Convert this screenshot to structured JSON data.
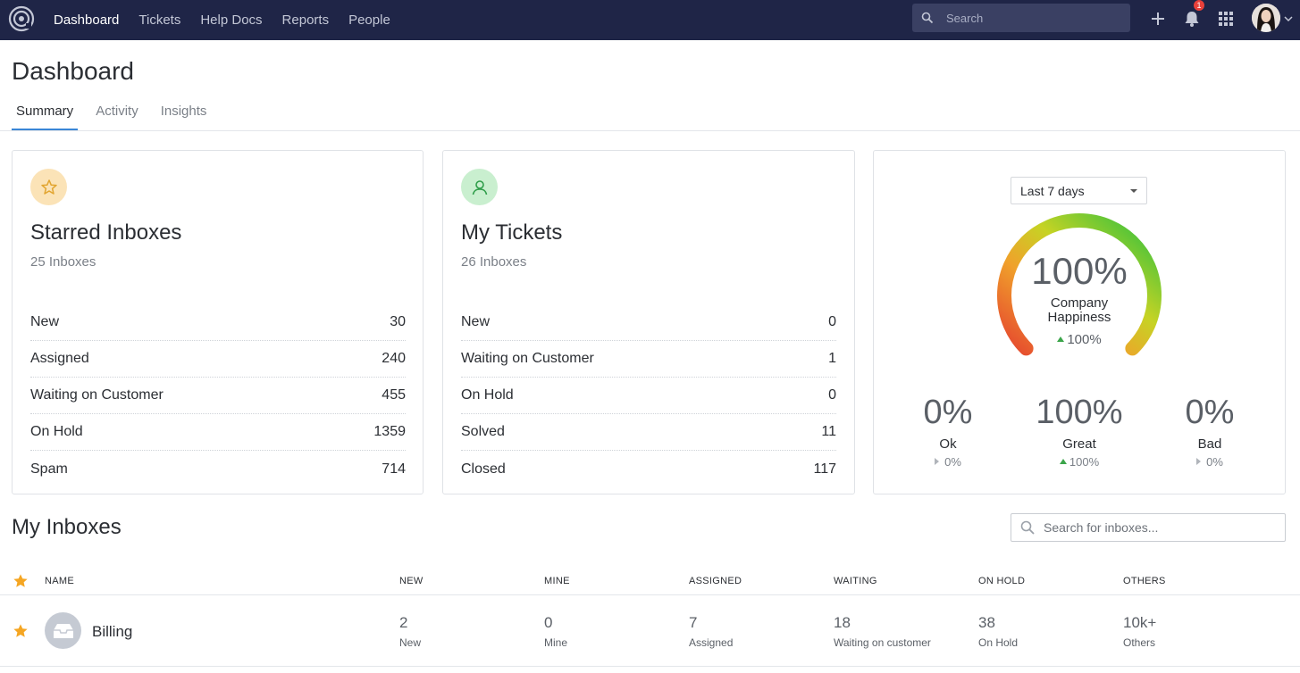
{
  "nav": {
    "links": [
      "Dashboard",
      "Tickets",
      "Help Docs",
      "Reports",
      "People"
    ],
    "search_placeholder": "Search",
    "notification_count": "1",
    "icons": [
      "logo-icon",
      "search-icon",
      "plus-icon",
      "bell-icon",
      "apps-grid-icon",
      "avatar",
      "chevron-down-icon"
    ]
  },
  "page": {
    "title": "Dashboard",
    "tabs": [
      "Summary",
      "Activity",
      "Insights"
    ]
  },
  "starred": {
    "title": "Starred Inboxes",
    "subtitle": "25 Inboxes",
    "rows": [
      {
        "label": "New",
        "value": "30"
      },
      {
        "label": "Assigned",
        "value": "240"
      },
      {
        "label": "Waiting on Customer",
        "value": "455"
      },
      {
        "label": "On Hold",
        "value": "1359"
      },
      {
        "label": "Spam",
        "value": "714"
      }
    ]
  },
  "mytickets": {
    "title": "My Tickets",
    "subtitle": "26 Inboxes",
    "rows": [
      {
        "label": "New",
        "value": "0"
      },
      {
        "label": "Waiting on Customer",
        "value": "1"
      },
      {
        "label": "On Hold",
        "value": "0"
      },
      {
        "label": "Solved",
        "value": "11"
      },
      {
        "label": "Closed",
        "value": "117"
      }
    ]
  },
  "happiness": {
    "range": "Last 7 days",
    "value": "100%",
    "label_line1": "Company",
    "label_line2": "Happiness",
    "change": "100%",
    "gauge_fraction": 1.0,
    "metrics": [
      {
        "value": "0%",
        "label": "Ok",
        "change": "0%"
      },
      {
        "value": "100%",
        "label": "Great",
        "change": "100%"
      },
      {
        "value": "0%",
        "label": "Bad",
        "change": "0%"
      }
    ]
  },
  "inboxes": {
    "title": "My Inboxes",
    "search_placeholder": "Search for inboxes...",
    "columns": [
      "NAME",
      "NEW",
      "MINE",
      "ASSIGNED",
      "WAITING",
      "ON HOLD",
      "OTHERS"
    ],
    "rows": [
      {
        "name": "Billing",
        "cells": [
          {
            "value": "2",
            "label": "New"
          },
          {
            "value": "0",
            "label": "Mine"
          },
          {
            "value": "7",
            "label": "Assigned"
          },
          {
            "value": "18",
            "label": "Waiting on customer"
          },
          {
            "value": "38",
            "label": "On Hold"
          },
          {
            "value": "10k+",
            "label": "Others"
          }
        ]
      }
    ]
  },
  "colors": {
    "nav_bg": "#1f2547",
    "accent": "#3a86d6",
    "star": "#f5a623",
    "positive": "#3ba54a"
  }
}
